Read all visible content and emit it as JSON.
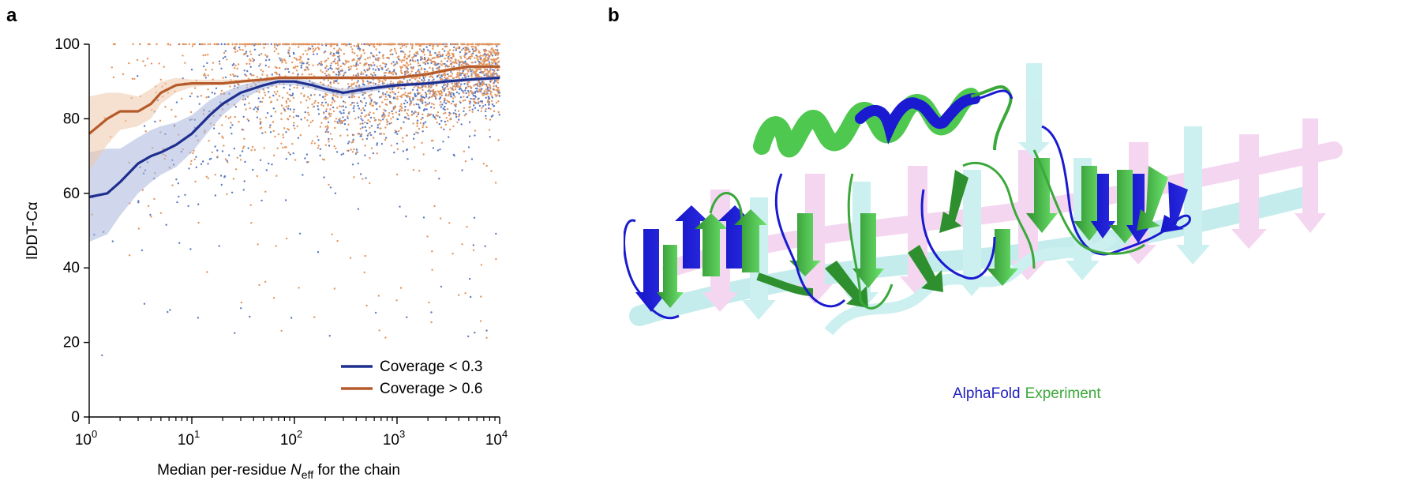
{
  "panels": {
    "a": "a",
    "b": "b"
  },
  "chart_data": {
    "type": "scatter",
    "xlabel_prefix": "Median per-residue ",
    "xlabel_var": "N",
    "xlabel_sub": "eff",
    "xlabel_suffix": " for the chain",
    "ylabel": "lDDT-Cα",
    "xscale": "log",
    "xlim": [
      1,
      10000
    ],
    "ylim": [
      0,
      100
    ],
    "x_ticks": [
      {
        "value": 1,
        "base": "10",
        "exp": "0"
      },
      {
        "value": 10,
        "base": "10",
        "exp": "1"
      },
      {
        "value": 100,
        "base": "10",
        "exp": "2"
      },
      {
        "value": 1000,
        "base": "10",
        "exp": "3"
      },
      {
        "value": 10000,
        "base": "10",
        "exp": "4"
      }
    ],
    "y_ticks": [
      "0",
      "20",
      "40",
      "60",
      "80",
      "100"
    ],
    "legend_position": "bottom-right",
    "series": [
      {
        "name": "Coverage < 0.3",
        "color": "#1f2f8f",
        "point_color": "#5b79c2",
        "band_color": "#aab6dc",
        "x": [
          1,
          1.5,
          2,
          3,
          4,
          5,
          7,
          10,
          15,
          20,
          30,
          50,
          70,
          100,
          150,
          200,
          300,
          500,
          1000,
          2000,
          3000,
          5000,
          10000
        ],
        "y": [
          59,
          60,
          63,
          68,
          70,
          71,
          73,
          76,
          81,
          84,
          87,
          89,
          90,
          90,
          89,
          88,
          87,
          88,
          89,
          89.5,
          90,
          90.5,
          91
        ],
        "band_lower": [
          47,
          49,
          54,
          60,
          63,
          65,
          67,
          71,
          77,
          81,
          85,
          88,
          89,
          89,
          88,
          87,
          86,
          87,
          88.5,
          89,
          89.5,
          90,
          90.5
        ],
        "band_upper": [
          71,
          72,
          72,
          75,
          77,
          78,
          79,
          81,
          85,
          87,
          89,
          90.5,
          91,
          91,
          90,
          89,
          88,
          89,
          89.5,
          90,
          90.5,
          91,
          91.5
        ]
      },
      {
        "name": "Coverage > 0.6",
        "color": "#b55a2a",
        "point_color": "#e2955e",
        "band_color": "#efc9aa",
        "x": [
          1,
          1.5,
          2,
          3,
          4,
          5,
          7,
          10,
          15,
          20,
          30,
          50,
          70,
          100,
          200,
          500,
          1000,
          2000,
          3000,
          5000,
          10000
        ],
        "y": [
          76,
          80,
          82,
          82,
          84,
          87,
          89,
          89.5,
          89.5,
          89.5,
          90,
          90.5,
          91,
          91,
          91,
          91,
          91,
          92,
          93,
          94,
          94
        ],
        "band_lower": [
          66,
          73,
          77,
          78,
          80,
          84,
          87,
          88.5,
          89,
          89,
          89.5,
          90,
          90.5,
          90.5,
          90.5,
          90.5,
          90.5,
          91.5,
          92.5,
          93.5,
          93.5
        ],
        "band_upper": [
          86,
          87,
          87,
          86,
          88,
          90,
          91,
          90.5,
          90.5,
          90.5,
          90.5,
          91,
          91.5,
          91.5,
          91.5,
          91.5,
          91.5,
          92.5,
          93.5,
          94.5,
          94.5
        ]
      }
    ]
  },
  "structure": {
    "legend": [
      {
        "label": "AlphaFold",
        "color": "#1f1fbf"
      },
      {
        "label": "Experiment",
        "color": "#3aa83a"
      }
    ]
  }
}
